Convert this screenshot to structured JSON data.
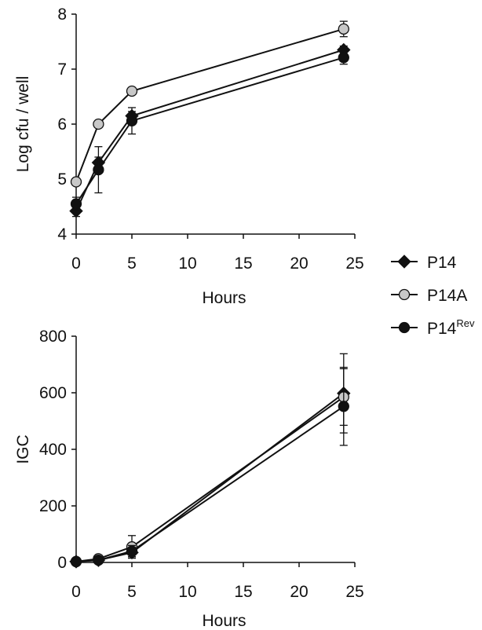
{
  "colors": {
    "P14": "#111111",
    "P14A": "#c8c8c8",
    "P14Rev": "#111111",
    "line": "#111111",
    "marker_outline": "#111111"
  },
  "legend": {
    "placement": "right, between the two panels",
    "items": [
      {
        "series": "P14",
        "label": "P14",
        "sup": "",
        "marker": "diamond-filled"
      },
      {
        "series": "P14A",
        "label": "P14A",
        "sup": "",
        "marker": "circle-grey"
      },
      {
        "series": "P14Rev",
        "label": "P14",
        "sup": "Rev",
        "marker": "circle-filled"
      }
    ]
  },
  "chart_data": [
    {
      "type": "line",
      "title": "",
      "xlabel": "Hours",
      "ylabel": "Log cfu / well",
      "xlim": [
        0,
        25
      ],
      "ylim": [
        4,
        8
      ],
      "xticks": [
        0,
        5,
        10,
        15,
        20,
        25
      ],
      "yticks": [
        4,
        5,
        6,
        7,
        8
      ],
      "grid": false,
      "series": [
        {
          "name": "P14",
          "marker": "diamond",
          "x": [
            0,
            2,
            5,
            24
          ],
          "y": [
            4.42,
            5.3,
            6.15,
            7.35
          ],
          "err": [
            0.1,
            0.1,
            0.08,
            0.07
          ]
        },
        {
          "name": "P14A",
          "marker": "circle-grey",
          "x": [
            0,
            2,
            5,
            24
          ],
          "y": [
            4.95,
            6.0,
            6.6,
            7.73
          ],
          "err": [
            0.05,
            0.05,
            0.05,
            0.14
          ]
        },
        {
          "name": "P14Rev",
          "marker": "circle",
          "x": [
            0,
            2,
            5,
            24
          ],
          "y": [
            4.55,
            5.17,
            6.06,
            7.21
          ],
          "err": [
            0.12,
            0.42,
            0.24,
            0.12
          ]
        }
      ]
    },
    {
      "type": "line",
      "title": "",
      "xlabel": "Hours",
      "ylabel": "IGC",
      "xlim": [
        0,
        25
      ],
      "ylim": [
        0,
        800
      ],
      "xticks": [
        0,
        5,
        10,
        15,
        20,
        25
      ],
      "yticks": [
        0,
        200,
        400,
        600,
        800
      ],
      "grid": false,
      "series": [
        {
          "name": "P14",
          "marker": "diamond",
          "x": [
            0,
            2,
            5,
            24
          ],
          "y": [
            3,
            8,
            35,
            598
          ],
          "err": [
            3,
            5,
            15,
            140
          ]
        },
        {
          "name": "P14A",
          "marker": "circle-grey",
          "x": [
            0,
            2,
            5,
            24
          ],
          "y": [
            3,
            13,
            55,
            585
          ],
          "err": [
            3,
            8,
            40,
            100
          ]
        },
        {
          "name": "P14Rev",
          "marker": "circle",
          "x": [
            0,
            2,
            5,
            24
          ],
          "y": [
            3,
            8,
            40,
            552
          ],
          "err": [
            3,
            5,
            20,
            138
          ]
        }
      ]
    }
  ]
}
